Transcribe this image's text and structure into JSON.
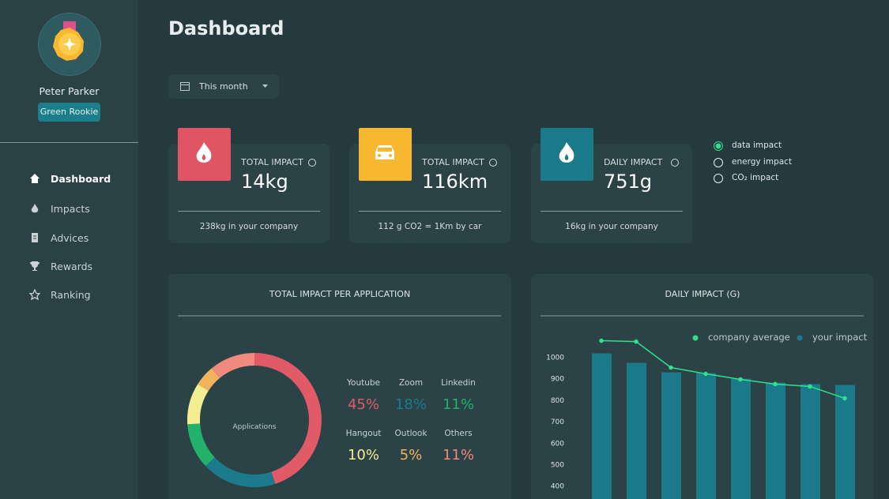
{
  "sidebar": {
    "user": {
      "name": "Peter Parker",
      "badge": "Green Rookie"
    },
    "nav": [
      "Dashboard",
      "Impacts",
      "Advices",
      "Rewards",
      "Ranking"
    ],
    "active": 0
  },
  "header": {
    "title": "Dashboard",
    "filter": "This month"
  },
  "cards": [
    {
      "label": "TOTAL IMPACT",
      "value": "14kg",
      "footer": "238kg in your company"
    },
    {
      "label": "TOTAL  IMPACT",
      "value": "116km",
      "footer": "112 g CO2 = 1Km by car"
    },
    {
      "label": "DAILY IMPACT",
      "value": "751g",
      "footer": "16kg in your company"
    }
  ],
  "impact_options": {
    "options": [
      "data impact",
      "energy impact",
      "CO₂ impact"
    ],
    "selected": 0
  },
  "chart_data": [
    {
      "type": "donut",
      "title": "TOTAL  IMPACT PER APPLICATION",
      "center_label": "Applications",
      "categories": [
        "Youtube",
        "Zoom",
        "Linkedin",
        "Hangout",
        "Outlook",
        "Others"
      ],
      "values": [
        45,
        18,
        11,
        10,
        5,
        11
      ],
      "value_labels": [
        "45%",
        "18%",
        "11%",
        "10%",
        "5%",
        "11%"
      ],
      "colors": [
        "#e05a67",
        "#1b7b8c",
        "#22b26b",
        "#f3ee8f",
        "#f2b35f",
        "#f08a7e"
      ]
    },
    {
      "type": "bar_line",
      "title": "DAILY IMPACT (G)",
      "categories": [
        null,
        null,
        null,
        null,
        null,
        null,
        null,
        null
      ],
      "series": [
        {
          "name": "company average",
          "type": "line",
          "color": "#2fe08c",
          "values": [
            1077,
            1073,
            952,
            923,
            897,
            875,
            864,
            809
          ]
        },
        {
          "name": "your impact",
          "type": "bar",
          "color": "#1a7a8a",
          "values": [
            1018,
            974,
            930,
            926,
            900,
            882,
            875,
            871
          ]
        }
      ],
      "ylim": [
        340,
        1100
      ],
      "yticks": [
        400,
        500,
        600,
        700,
        800,
        900,
        1000
      ]
    }
  ]
}
